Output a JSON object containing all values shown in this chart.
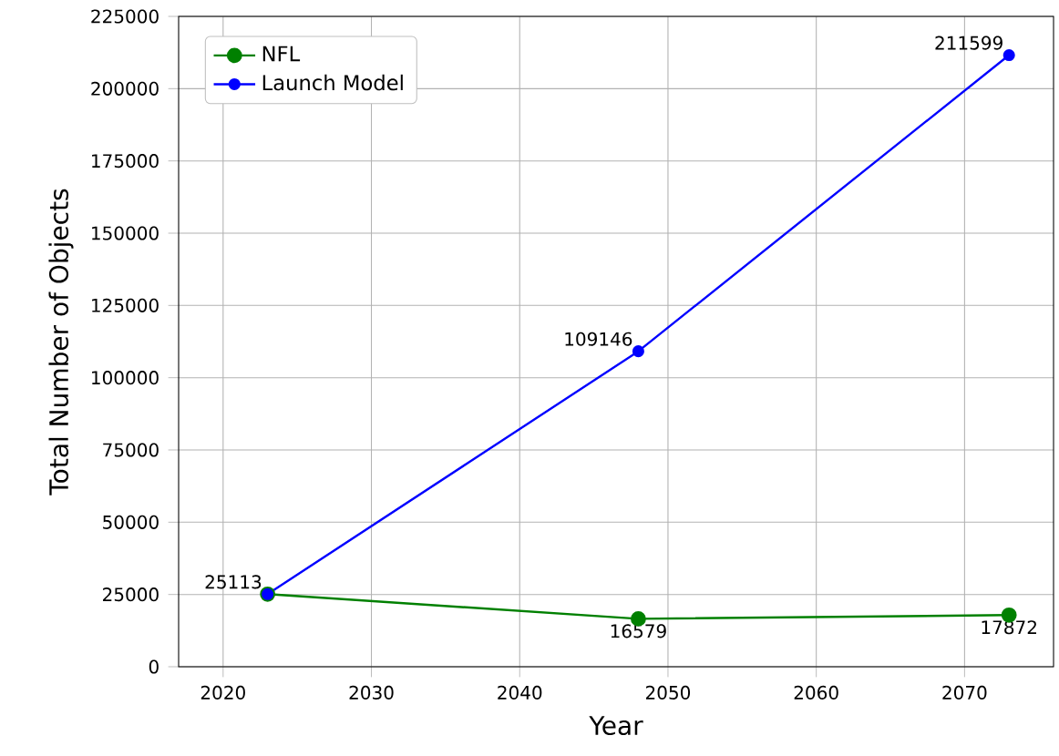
{
  "chart_data": {
    "type": "line",
    "xlabel": "Year",
    "ylabel": "Total Number of Objects",
    "x": [
      2023,
      2048,
      2073
    ],
    "series": [
      {
        "name": "NFL",
        "color": "#008000",
        "values": [
          25113,
          16579,
          17872
        ],
        "value_labels": [
          null,
          "16579",
          "17872"
        ]
      },
      {
        "name": "Launch Model",
        "color": "#0000ff",
        "values": [
          25113,
          109146,
          211599
        ],
        "value_labels": [
          "25113",
          "109146",
          "211599"
        ]
      }
    ],
    "xlim": [
      2017,
      2076
    ],
    "xticks": [
      2020,
      2030,
      2040,
      2050,
      2060,
      2070
    ],
    "ylim": [
      0,
      225000
    ],
    "yticks": [
      0,
      25000,
      50000,
      75000,
      100000,
      125000,
      150000,
      175000,
      200000,
      225000
    ],
    "grid": true,
    "legend": "top left",
    "marker": "circle",
    "line_style": "solid"
  }
}
